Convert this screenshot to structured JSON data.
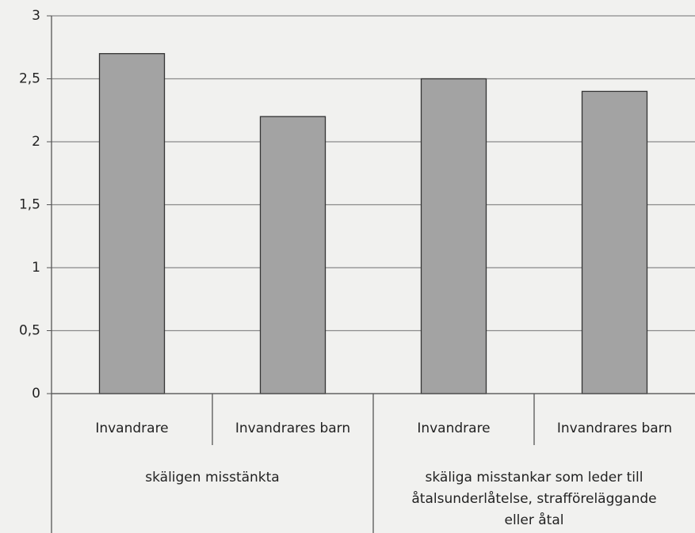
{
  "chart_data": {
    "type": "bar",
    "groups": [
      {
        "name": "skäligen misstänkta",
        "categories": [
          "Invandrare",
          "Invandrares barn"
        ],
        "values": [
          2.7,
          2.2
        ]
      },
      {
        "name": "skäliga misstankar som leder till åtalsunderlåtelse, strafföreläggande eller åtal",
        "categories": [
          "Invandrare",
          "Invandrares barn"
        ],
        "values": [
          2.5,
          2.4
        ]
      }
    ],
    "color": "#a3a3a3",
    "ylim": [
      0,
      3
    ],
    "yticks": [
      0,
      {
        "value": 0.5,
        "label": "0,5"
      },
      1,
      {
        "value": 1.5,
        "label": "1,5"
      },
      2,
      {
        "value": 2.5,
        "label": "2,5"
      },
      3
    ],
    "grid": true
  }
}
